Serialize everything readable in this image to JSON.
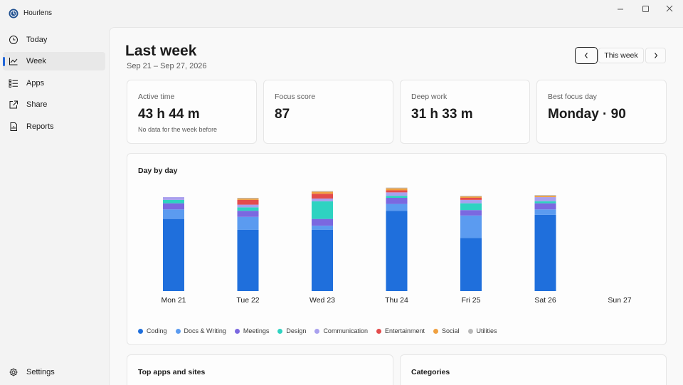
{
  "app": {
    "title": "Hourlens"
  },
  "sidebar": {
    "items": [
      {
        "label": "Today",
        "icon": "clock-icon"
      },
      {
        "label": "Week",
        "icon": "chart-icon"
      },
      {
        "label": "Apps",
        "icon": "list-icon"
      },
      {
        "label": "Share",
        "icon": "share-icon"
      },
      {
        "label": "Reports",
        "icon": "report-icon"
      }
    ],
    "active": "Week",
    "settings": {
      "label": "Settings",
      "icon": "gear-icon"
    }
  },
  "header": {
    "title": "Last week",
    "date_range": "Sep 21 – Sep 27, 2026",
    "this_week_label": "This week"
  },
  "stats": [
    {
      "label": "Active time",
      "value": "43 h 44 m",
      "note": "No data for the week before"
    },
    {
      "label": "Focus score",
      "value": "87"
    },
    {
      "label": "Deep work",
      "value": "31 h 33 m"
    },
    {
      "label": "Best focus day",
      "value": "Monday · 90"
    }
  ],
  "day_by_day": {
    "title": "Day by day"
  },
  "chart_data": {
    "type": "bar",
    "stacked": true,
    "categories": [
      "Mon 21",
      "Tue 22",
      "Wed 23",
      "Thu 24",
      "Fri 25",
      "Sat 26",
      "Sun 27"
    ],
    "series": [
      {
        "name": "Coding",
        "color": "#1f6fdc",
        "values": [
          106,
          90,
          90,
          118,
          78,
          112,
          0
        ]
      },
      {
        "name": "Docs & Writing",
        "color": "#5b9bf0",
        "values": [
          14,
          19,
          6,
          10,
          33,
          8,
          0
        ]
      },
      {
        "name": "Meetings",
        "color": "#7b68e0",
        "values": [
          9,
          9,
          10,
          9,
          8,
          9,
          0
        ]
      },
      {
        "name": "Design",
        "color": "#2ed3c1",
        "values": [
          5,
          5,
          26,
          3,
          10,
          3,
          0
        ]
      },
      {
        "name": "Communication",
        "color": "#a9a0ee",
        "values": [
          4,
          4,
          4,
          5,
          5,
          6,
          0
        ]
      },
      {
        "name": "Entertainment",
        "color": "#e34c4c",
        "values": [
          0,
          7,
          7,
          3,
          3,
          0,
          0
        ]
      },
      {
        "name": "Social",
        "color": "#f0a040",
        "values": [
          0,
          2,
          3,
          3,
          2,
          2,
          0
        ]
      },
      {
        "name": "Utilities",
        "color": "#b8b8b8",
        "values": [
          0,
          1,
          1,
          1,
          1,
          1,
          0
        ]
      }
    ],
    "legend_position": "bottom-left",
    "grid": false,
    "ylim": [
      0,
      160
    ]
  },
  "bottom_cards": {
    "top_apps_title": "Top apps and sites",
    "categories_title": "Categories"
  }
}
